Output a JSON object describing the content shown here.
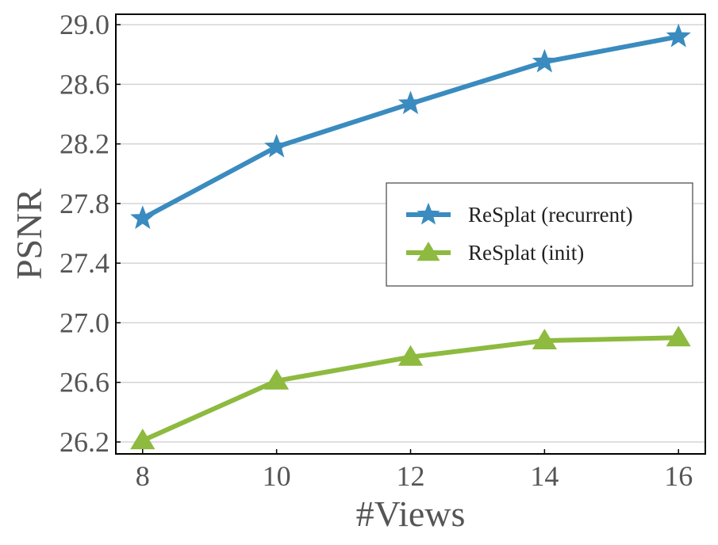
{
  "chart_data": {
    "type": "line",
    "title": "",
    "xlabel": "#Views",
    "ylabel": "PSNR",
    "x": [
      8,
      10,
      12,
      14,
      16
    ],
    "xticks": [
      "8",
      "10",
      "12",
      "14",
      "16"
    ],
    "yticks": [
      "26.2",
      "26.6",
      "27.0",
      "27.4",
      "27.8",
      "28.2",
      "28.6",
      "29.0"
    ],
    "xlim": [
      7.6,
      16.4
    ],
    "ylim": [
      26.12,
      29.07
    ],
    "grid": "horizontal",
    "legend_position": "right",
    "series": [
      {
        "name": "ReSplat (recurrent)",
        "values": [
          27.7,
          28.18,
          28.47,
          28.75,
          28.92
        ],
        "color": "#3a8bbf",
        "marker": "star"
      },
      {
        "name": "ReSplat (init)",
        "values": [
          26.21,
          26.61,
          26.77,
          26.88,
          26.9
        ],
        "color": "#8dba3f",
        "marker": "triangle"
      }
    ]
  }
}
